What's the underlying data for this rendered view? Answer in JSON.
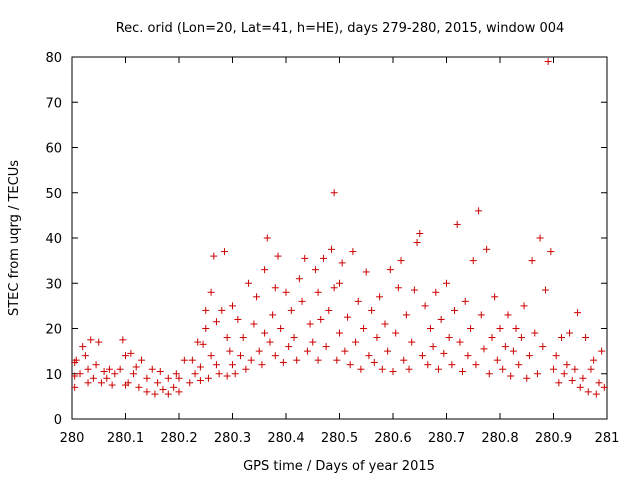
{
  "chart_data": {
    "type": "scatter",
    "title": "Rec. orid (Lon=20, Lat=41, h=HE), days 279-280, 2015, window 004",
    "xlabel": "GPS time / Days of year 2015",
    "ylabel": "STEC from uqrg / TECUs",
    "xlim": [
      280,
      281
    ],
    "ylim": [
      0,
      80
    ],
    "xticks": [
      280,
      280.1,
      280.2,
      280.3,
      280.4,
      280.5,
      280.6,
      280.7,
      280.8,
      280.9,
      281
    ],
    "xtick_labels": [
      "280",
      "280.1",
      "280.2",
      "280.3",
      "280.4",
      "280.5",
      "280.6",
      "280.7",
      "280.8",
      "280.9",
      "281"
    ],
    "yticks": [
      0,
      10,
      20,
      30,
      40,
      50,
      60,
      70,
      80
    ],
    "ytick_labels": [
      "0",
      "10",
      "20",
      "30",
      "40",
      "50",
      "60",
      "70",
      "80"
    ],
    "grid": false,
    "marker": "plus",
    "color": "#cc0000",
    "points": [
      [
        280.005,
        7
      ],
      [
        280.005,
        9.5
      ],
      [
        280.005,
        12.5
      ],
      [
        280.008,
        13
      ],
      [
        280.015,
        10
      ],
      [
        280.02,
        16
      ],
      [
        280.025,
        14
      ],
      [
        280.03,
        8
      ],
      [
        280.03,
        11
      ],
      [
        280.035,
        17.5
      ],
      [
        280.04,
        9
      ],
      [
        280.045,
        12
      ],
      [
        280.05,
        17
      ],
      [
        280.055,
        8
      ],
      [
        280.06,
        10.5
      ],
      [
        280.065,
        9
      ],
      [
        280.07,
        11
      ],
      [
        280.075,
        7.5
      ],
      [
        280.08,
        10
      ],
      [
        280.09,
        11
      ],
      [
        280.095,
        17.5
      ],
      [
        280.1,
        7.5
      ],
      [
        280.1,
        14
      ],
      [
        280.105,
        8
      ],
      [
        280.11,
        14.5
      ],
      [
        280.115,
        10
      ],
      [
        280.12,
        11.5
      ],
      [
        280.125,
        7
      ],
      [
        280.13,
        13
      ],
      [
        280.14,
        6
      ],
      [
        280.14,
        9
      ],
      [
        280.15,
        11
      ],
      [
        280.155,
        5.5
      ],
      [
        280.16,
        8
      ],
      [
        280.165,
        10.5
      ],
      [
        280.17,
        6.5
      ],
      [
        280.18,
        5.5
      ],
      [
        280.18,
        9
      ],
      [
        280.19,
        7
      ],
      [
        280.195,
        10
      ],
      [
        280.2,
        6
      ],
      [
        280.2,
        9
      ],
      [
        280.21,
        13
      ],
      [
        280.22,
        8
      ],
      [
        280.225,
        13
      ],
      [
        280.23,
        10
      ],
      [
        280.235,
        17
      ],
      [
        280.24,
        8.5
      ],
      [
        280.24,
        11.5
      ],
      [
        280.245,
        16.5
      ],
      [
        280.25,
        20
      ],
      [
        280.25,
        24
      ],
      [
        280.255,
        9
      ],
      [
        280.26,
        14
      ],
      [
        280.26,
        28
      ],
      [
        280.265,
        36
      ],
      [
        280.27,
        12
      ],
      [
        280.27,
        21.5
      ],
      [
        280.275,
        10
      ],
      [
        280.28,
        24
      ],
      [
        280.285,
        37
      ],
      [
        280.29,
        9.5
      ],
      [
        280.29,
        18
      ],
      [
        280.295,
        15
      ],
      [
        280.3,
        12
      ],
      [
        280.3,
        25
      ],
      [
        280.305,
        10
      ],
      [
        280.31,
        22
      ],
      [
        280.315,
        14
      ],
      [
        280.32,
        18
      ],
      [
        280.325,
        11
      ],
      [
        280.33,
        30
      ],
      [
        280.335,
        13
      ],
      [
        280.34,
        21
      ],
      [
        280.345,
        27
      ],
      [
        280.35,
        15
      ],
      [
        280.355,
        12
      ],
      [
        280.36,
        19
      ],
      [
        280.36,
        33
      ],
      [
        280.365,
        40
      ],
      [
        280.37,
        17
      ],
      [
        280.375,
        23
      ],
      [
        280.38,
        14
      ],
      [
        280.38,
        29
      ],
      [
        280.385,
        36
      ],
      [
        280.39,
        20
      ],
      [
        280.395,
        12.5
      ],
      [
        280.4,
        28
      ],
      [
        280.405,
        16
      ],
      [
        280.41,
        24
      ],
      [
        280.415,
        18
      ],
      [
        280.42,
        13
      ],
      [
        280.425,
        31
      ],
      [
        280.43,
        26
      ],
      [
        280.435,
        35.5
      ],
      [
        280.44,
        15
      ],
      [
        280.445,
        21
      ],
      [
        280.45,
        17
      ],
      [
        280.455,
        33
      ],
      [
        280.46,
        13
      ],
      [
        280.46,
        28
      ],
      [
        280.465,
        22
      ],
      [
        280.47,
        35.5
      ],
      [
        280.475,
        16
      ],
      [
        280.48,
        24
      ],
      [
        280.485,
        37.5
      ],
      [
        280.49,
        29
      ],
      [
        280.49,
        50
      ],
      [
        280.495,
        13
      ],
      [
        280.5,
        19
      ],
      [
        280.5,
        30
      ],
      [
        280.505,
        34.5
      ],
      [
        280.51,
        15
      ],
      [
        280.515,
        22.5
      ],
      [
        280.52,
        12
      ],
      [
        280.525,
        37
      ],
      [
        280.53,
        17
      ],
      [
        280.535,
        26
      ],
      [
        280.54,
        11
      ],
      [
        280.545,
        20
      ],
      [
        280.55,
        32.5
      ],
      [
        280.555,
        14
      ],
      [
        280.56,
        24
      ],
      [
        280.565,
        12.5
      ],
      [
        280.57,
        18
      ],
      [
        280.575,
        27
      ],
      [
        280.58,
        11
      ],
      [
        280.585,
        21
      ],
      [
        280.59,
        15
      ],
      [
        280.595,
        33
      ],
      [
        280.6,
        10.5
      ],
      [
        280.605,
        19
      ],
      [
        280.61,
        29
      ],
      [
        280.615,
        35
      ],
      [
        280.62,
        13
      ],
      [
        280.625,
        23
      ],
      [
        280.63,
        11
      ],
      [
        280.635,
        17
      ],
      [
        280.64,
        28.5
      ],
      [
        280.645,
        39
      ],
      [
        280.65,
        41
      ],
      [
        280.655,
        14
      ],
      [
        280.66,
        25
      ],
      [
        280.665,
        12
      ],
      [
        280.67,
        20
      ],
      [
        280.675,
        16
      ],
      [
        280.68,
        28
      ],
      [
        280.685,
        11
      ],
      [
        280.69,
        22
      ],
      [
        280.695,
        14.5
      ],
      [
        280.7,
        30
      ],
      [
        280.705,
        18
      ],
      [
        280.71,
        12
      ],
      [
        280.715,
        24
      ],
      [
        280.72,
        43
      ],
      [
        280.725,
        17
      ],
      [
        280.73,
        10.5
      ],
      [
        280.735,
        26
      ],
      [
        280.74,
        14
      ],
      [
        280.745,
        20
      ],
      [
        280.75,
        35
      ],
      [
        280.755,
        12
      ],
      [
        280.76,
        46
      ],
      [
        280.765,
        23
      ],
      [
        280.77,
        15.5
      ],
      [
        280.775,
        37.5
      ],
      [
        280.78,
        10
      ],
      [
        280.785,
        18
      ],
      [
        280.79,
        27
      ],
      [
        280.795,
        13
      ],
      [
        280.8,
        20
      ],
      [
        280.805,
        11
      ],
      [
        280.81,
        16
      ],
      [
        280.815,
        23
      ],
      [
        280.82,
        9.5
      ],
      [
        280.825,
        15
      ],
      [
        280.83,
        20
      ],
      [
        280.835,
        12
      ],
      [
        280.84,
        18
      ],
      [
        280.845,
        25
      ],
      [
        280.85,
        9
      ],
      [
        280.855,
        14
      ],
      [
        280.86,
        35
      ],
      [
        280.865,
        19
      ],
      [
        280.87,
        10
      ],
      [
        280.875,
        40
      ],
      [
        280.88,
        16
      ],
      [
        280.885,
        28.5
      ],
      [
        280.89,
        79
      ],
      [
        280.895,
        37
      ],
      [
        280.9,
        11
      ],
      [
        280.905,
        14
      ],
      [
        280.91,
        8
      ],
      [
        280.915,
        18
      ],
      [
        280.92,
        10
      ],
      [
        280.925,
        12
      ],
      [
        280.93,
        19
      ],
      [
        280.935,
        8.5
      ],
      [
        280.94,
        11
      ],
      [
        280.945,
        23.5
      ],
      [
        280.95,
        7
      ],
      [
        280.955,
        9
      ],
      [
        280.96,
        18
      ],
      [
        280.965,
        6
      ],
      [
        280.97,
        11
      ],
      [
        280.975,
        13
      ],
      [
        280.98,
        5.5
      ],
      [
        280.985,
        8
      ],
      [
        280.99,
        15
      ],
      [
        280.995,
        7
      ]
    ]
  }
}
